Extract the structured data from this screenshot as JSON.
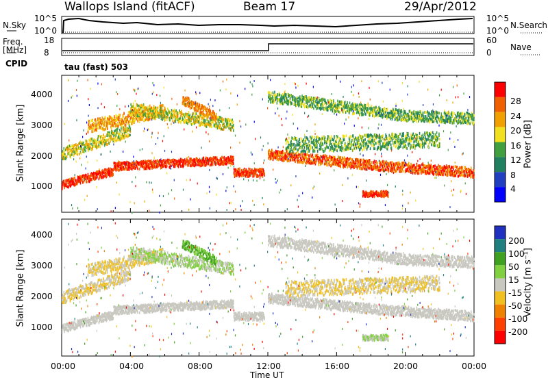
{
  "header": {
    "station": "Wallops Island (fitACF)",
    "beam": "Beam 17",
    "date": "29/Apr/2012"
  },
  "top_panels": {
    "nsky_label": "N.Sky",
    "nsky_ticks": [
      "10^5",
      "10^0"
    ],
    "nsearch_label": "N.Search",
    "nsearch_ticks": [
      "10^5",
      "10^0"
    ],
    "freq_label": "Freq.",
    "freq_unit": "[MHz]",
    "freq_ticks": [
      "18",
      "8"
    ],
    "nave_label": "Nave",
    "nave_ticks": [
      "60",
      "0"
    ],
    "cpid_label": "CPID",
    "cpid_value": "tau (fast) 503"
  },
  "x_axis": {
    "label": "Time UT",
    "ticks": [
      "00:00",
      "04:00",
      "08:00",
      "12:00",
      "16:00",
      "20:00",
      "00:00"
    ]
  },
  "chart_data": [
    {
      "type": "heatmap",
      "name": "power",
      "ylabel": "Slant Range [km]",
      "yticks": [
        "1000",
        "2000",
        "3000",
        "4000"
      ],
      "ylim": [
        0,
        4500
      ],
      "xlim_hours": [
        0,
        24
      ],
      "colorbar": {
        "label": "Power [dB]",
        "ticks": [
          "4",
          "8",
          "12",
          "16",
          "20",
          "24",
          "28"
        ],
        "colors": [
          "#0000ff",
          "#2040c0",
          "#208060",
          "#40a040",
          "#f0e020",
          "#f0a000",
          "#f06000",
          "#ff0000"
        ]
      }
    },
    {
      "type": "heatmap",
      "name": "velocity",
      "ylabel": "Slant Range [km]",
      "yticks": [
        "1000",
        "2000",
        "3000",
        "4000"
      ],
      "ylim": [
        0,
        4500
      ],
      "xlim_hours": [
        0,
        24
      ],
      "colorbar": {
        "label": "Velocity [m s⁻¹]",
        "ticks": [
          "200",
          "100",
          "50",
          "15",
          "-15",
          "-50",
          "-100",
          "-200"
        ],
        "colors": [
          "#2030c0",
          "#208080",
          "#40a020",
          "#80d040",
          "#c8c8c0",
          "#f0c020",
          "#f08000",
          "#ff4000",
          "#ff0000"
        ]
      }
    }
  ]
}
